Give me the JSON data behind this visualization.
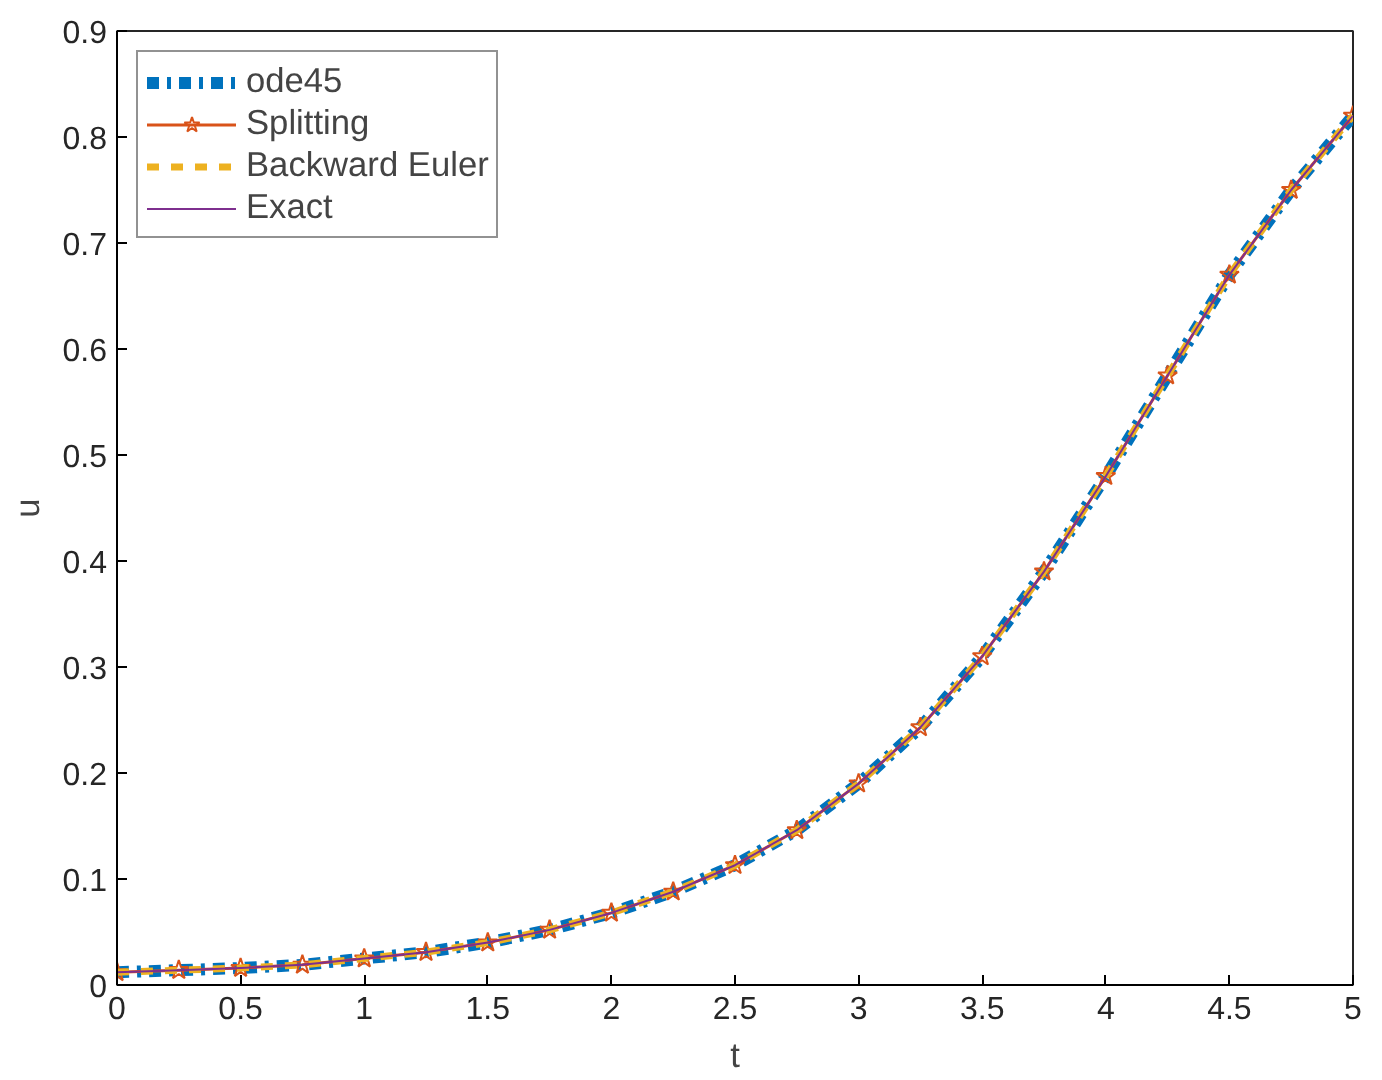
{
  "chart_data": {
    "type": "line",
    "xlabel": "t",
    "ylabel": "u",
    "x": [
      0,
      0.25,
      0.5,
      0.75,
      1,
      1.25,
      1.5,
      1.75,
      2,
      2.25,
      2.5,
      2.75,
      3,
      3.25,
      3.5,
      3.75,
      4,
      4.25,
      4.5,
      4.75,
      5
    ],
    "series": [
      {
        "name": "ode45",
        "color": "#0072bd",
        "line_style": "dashdot",
        "marker": "none",
        "values": [
          0.012,
          0.014,
          0.016,
          0.019,
          0.025,
          0.031,
          0.04,
          0.052,
          0.068,
          0.088,
          0.113,
          0.146,
          0.19,
          0.243,
          0.31,
          0.39,
          0.48,
          0.575,
          0.67,
          0.75,
          0.82
        ]
      },
      {
        "name": "Splitting",
        "color": "#d95319",
        "line_style": "solid",
        "marker": "star",
        "values": [
          0.012,
          0.014,
          0.016,
          0.019,
          0.025,
          0.031,
          0.04,
          0.052,
          0.068,
          0.088,
          0.113,
          0.146,
          0.19,
          0.243,
          0.31,
          0.39,
          0.48,
          0.575,
          0.67,
          0.75,
          0.82
        ]
      },
      {
        "name": "Backward Euler",
        "color": "#edb120",
        "line_style": "dashed",
        "marker": "none",
        "values": [
          0.012,
          0.014,
          0.016,
          0.019,
          0.025,
          0.031,
          0.04,
          0.052,
          0.068,
          0.088,
          0.113,
          0.146,
          0.19,
          0.243,
          0.31,
          0.39,
          0.48,
          0.575,
          0.67,
          0.75,
          0.82
        ]
      },
      {
        "name": "Exact",
        "color": "#7e2f8e",
        "line_style": "solid",
        "marker": "none",
        "values": [
          0.012,
          0.014,
          0.016,
          0.019,
          0.025,
          0.031,
          0.04,
          0.052,
          0.068,
          0.088,
          0.113,
          0.146,
          0.19,
          0.243,
          0.31,
          0.39,
          0.48,
          0.575,
          0.67,
          0.75,
          0.82
        ]
      }
    ],
    "xlim": [
      0,
      5
    ],
    "ylim": [
      0,
      0.9
    ],
    "xticks": [
      0,
      0.5,
      1,
      1.5,
      2,
      2.5,
      3,
      3.5,
      4,
      4.5,
      5
    ],
    "yticks": [
      0,
      0.1,
      0.2,
      0.3,
      0.4,
      0.5,
      0.6,
      0.7,
      0.8,
      0.9
    ],
    "legend": "top left",
    "grid": false
  }
}
